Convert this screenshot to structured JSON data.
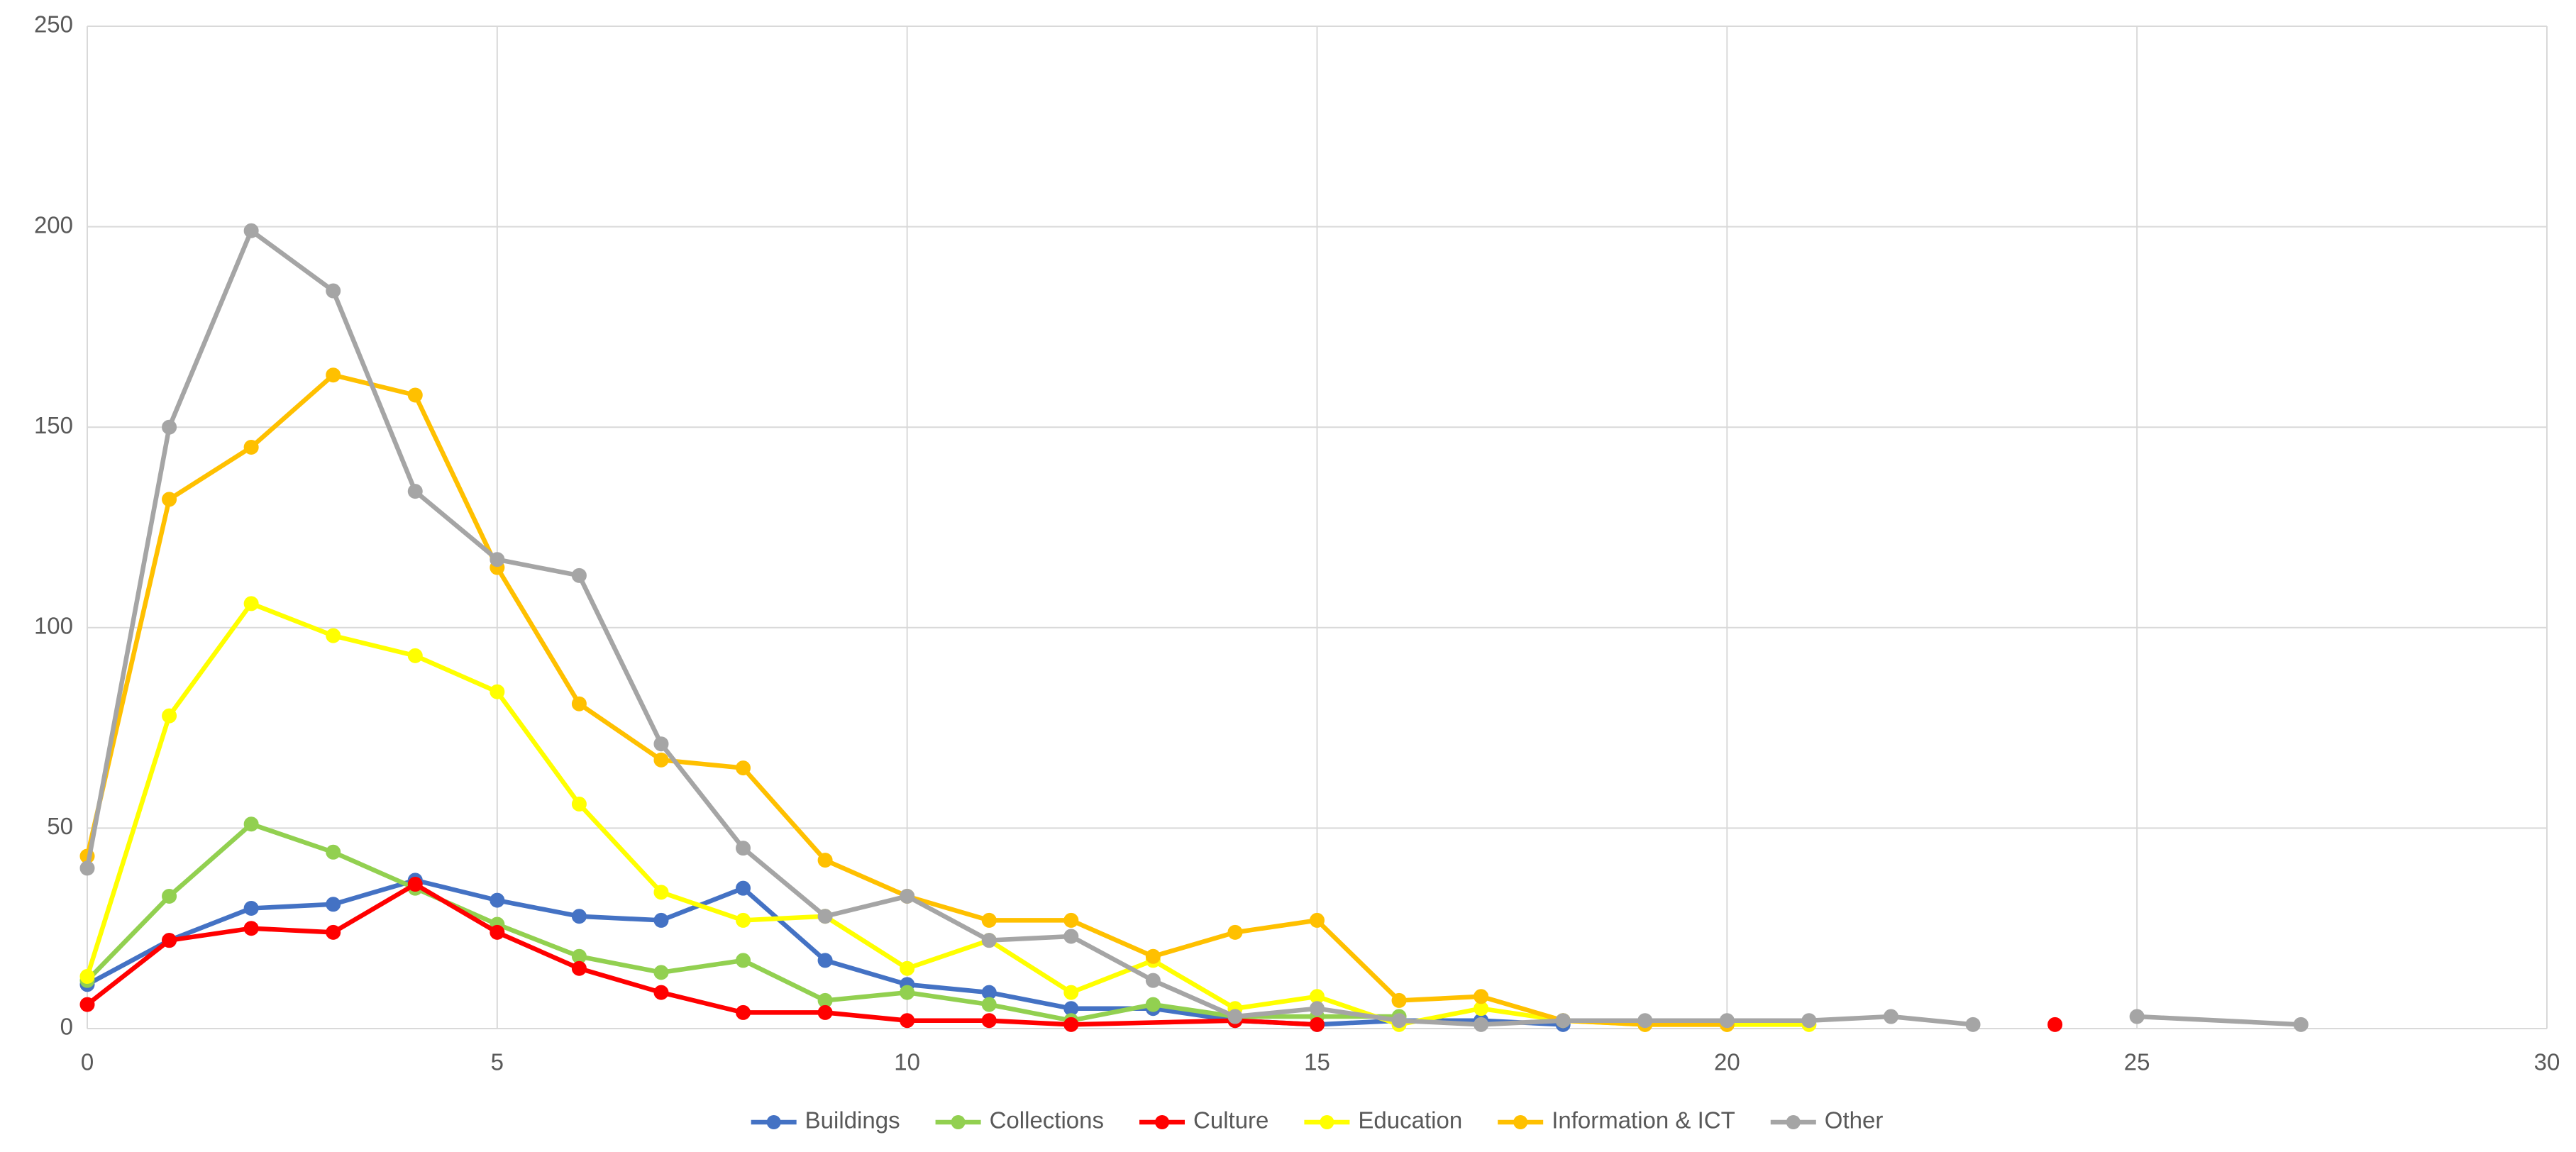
{
  "chart_data": {
    "type": "line",
    "xlim": [
      0,
      30
    ],
    "xticks": [
      0,
      5,
      10,
      15,
      20,
      25,
      30
    ],
    "ylim": [
      0,
      250
    ],
    "yticks": [
      0,
      50,
      100,
      150,
      200,
      250
    ],
    "grid": true,
    "legend": "bottom",
    "series": [
      {
        "name": "Buildings",
        "color": "#4472c4",
        "x": [
          0,
          1,
          2,
          3,
          4,
          5,
          6,
          7,
          8,
          9,
          10,
          11,
          12,
          13,
          14,
          15,
          16,
          17,
          18
        ],
        "values": [
          11,
          22,
          30,
          31,
          37,
          32,
          28,
          27,
          35,
          17,
          11,
          9,
          5,
          5,
          2,
          1,
          2,
          2,
          1
        ]
      },
      {
        "name": "Collections",
        "color": "#92d050",
        "x": [
          0,
          1,
          2,
          3,
          4,
          5,
          6,
          7,
          8,
          9,
          10,
          11,
          12,
          13,
          14,
          15,
          16
        ],
        "values": [
          12,
          33,
          51,
          44,
          35,
          26,
          18,
          14,
          17,
          7,
          9,
          6,
          2,
          6,
          3,
          3,
          3
        ]
      },
      {
        "name": "Culture",
        "color": "#ff0000",
        "x": [
          0,
          1,
          2,
          3,
          4,
          5,
          6,
          7,
          8,
          9,
          10,
          11,
          12,
          14,
          15,
          16,
          24
        ],
        "values": [
          6,
          22,
          25,
          24,
          36,
          24,
          15,
          9,
          4,
          4,
          2,
          2,
          1,
          2,
          1,
          null,
          1
        ]
      },
      {
        "name": "Education",
        "color": "#ffff00",
        "x": [
          0,
          1,
          2,
          3,
          4,
          5,
          6,
          7,
          8,
          9,
          10,
          11,
          12,
          13,
          14,
          15,
          16,
          17,
          18,
          19,
          20,
          21
        ],
        "values": [
          13,
          78,
          106,
          98,
          93,
          84,
          56,
          34,
          27,
          28,
          15,
          22,
          9,
          17,
          5,
          8,
          1,
          5,
          2,
          1,
          1,
          1
        ]
      },
      {
        "name": "Information & ICT",
        "color": "#ffc000",
        "x": [
          0,
          1,
          2,
          3,
          4,
          5,
          6,
          7,
          8,
          9,
          10,
          11,
          12,
          13,
          14,
          15,
          16,
          17,
          18,
          19,
          20
        ],
        "values": [
          43,
          132,
          145,
          163,
          158,
          115,
          81,
          67,
          65,
          42,
          33,
          27,
          27,
          18,
          24,
          27,
          7,
          8,
          2,
          1,
          1
        ]
      },
      {
        "name": "Other",
        "color": "#a5a5a5",
        "x": [
          0,
          1,
          2,
          3,
          4,
          5,
          6,
          7,
          8,
          9,
          10,
          11,
          12,
          13,
          14,
          15,
          16,
          17,
          18,
          19,
          20,
          21,
          22,
          23,
          24,
          25,
          27
        ],
        "values": [
          40,
          150,
          199,
          184,
          134,
          117,
          113,
          71,
          45,
          28,
          33,
          22,
          23,
          12,
          3,
          5,
          2,
          1,
          2,
          2,
          2,
          2,
          3,
          1,
          null,
          3,
          1
        ]
      }
    ]
  }
}
